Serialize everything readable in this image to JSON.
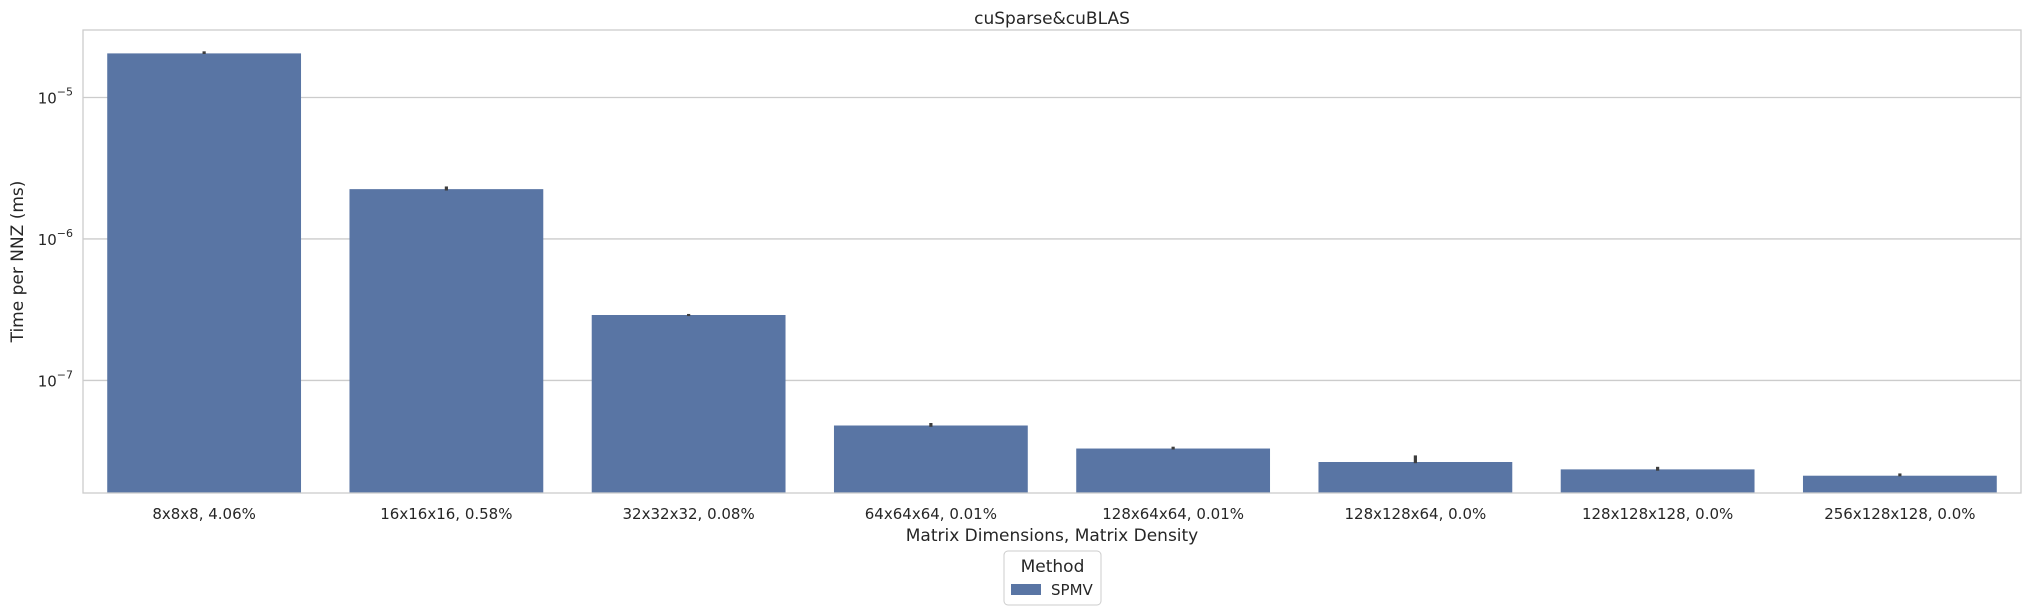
{
  "chart_data": {
    "type": "bar",
    "title": "cuSparse&cuBLAS",
    "xlabel": "Matrix Dimensions, Matrix Density",
    "ylabel": "Time per NNZ (ms)",
    "yscale": "log",
    "ylim": [
      1.6e-08,
      3e-05
    ],
    "yticks": [
      {
        "value": 1e-05,
        "base": "10",
        "exp": "−5"
      },
      {
        "value": 1e-06,
        "base": "10",
        "exp": "−6"
      },
      {
        "value": 1e-07,
        "base": "10",
        "exp": "−7"
      }
    ],
    "grid": "horizontal",
    "categories": [
      "8x8x8, 4.06%",
      "16x16x16, 0.58%",
      "32x32x32, 0.08%",
      "64x64x64, 0.01%",
      "128x64x64, 0.01%",
      "128x128x64, 0.0%",
      "128x128x128, 0.0%",
      "256x128x128, 0.0%"
    ],
    "series": [
      {
        "name": "SPMV",
        "color": "#5975a4",
        "values": [
          2.05e-05,
          2.25e-06,
          2.9e-07,
          4.8e-08,
          3.3e-08,
          2.65e-08,
          2.35e-08,
          2.12e-08
        ],
        "error_low": [
          2.03e-05,
          2.2e-06,
          2.85e-07,
          4.7e-08,
          3.25e-08,
          2.6e-08,
          2.3e-08,
          2.1e-08
        ],
        "error_high": [
          2.12e-05,
          2.35e-06,
          2.95e-07,
          5e-08,
          3.4e-08,
          2.95e-08,
          2.45e-08,
          2.2e-08
        ]
      }
    ],
    "legend": {
      "title": "Method",
      "placement": "bottom-center"
    }
  }
}
